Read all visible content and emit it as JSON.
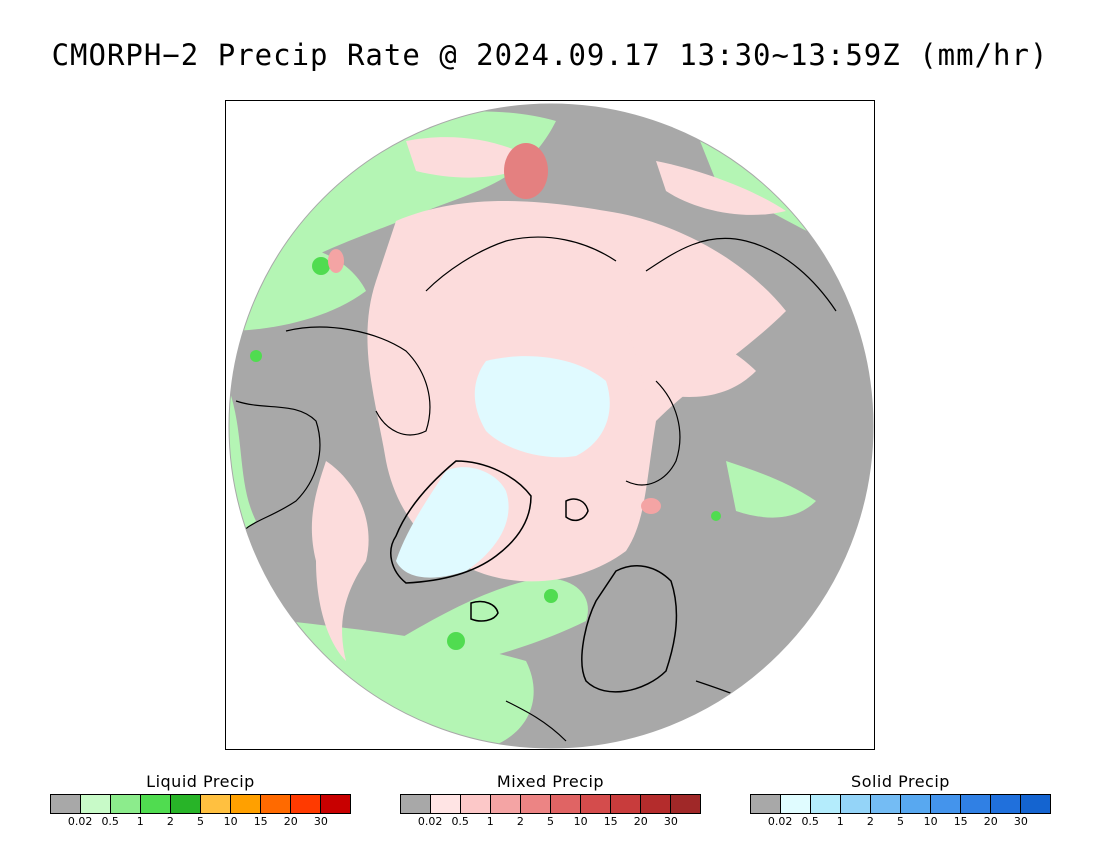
{
  "title": "CMORPH−2 Precip Rate @ 2024.09.17 13:30~13:59Z (mm/hr)",
  "map": {
    "projection": "north-polar-stereographic",
    "categories": {
      "none": "#a8a8a8",
      "liquid": "#b4f5b4",
      "liquid_mid": "#50dc50",
      "mixed": "#fcdcdc",
      "mixed_mid": "#e48080",
      "solid": "#e0faff",
      "coast": "#000000"
    }
  },
  "legends": [
    {
      "title": "Liquid Precip",
      "colors": [
        "#a8a8a8",
        "#c8fac8",
        "#8cec8c",
        "#50dc50",
        "#28b428",
        "#ffc040",
        "#ffa000",
        "#ff6a00",
        "#ff3a00",
        "#c80000"
      ],
      "labels": [
        "0.02",
        "0.5",
        "1",
        "2",
        "5",
        "10",
        "15",
        "20",
        "30"
      ]
    },
    {
      "title": "Mixed Precip",
      "colors": [
        "#a8a8a8",
        "#ffe4e4",
        "#fcc8c8",
        "#f4a4a4",
        "#ec8484",
        "#e06464",
        "#d44c4c",
        "#c83c3c",
        "#b42c2c",
        "#a02828"
      ],
      "labels": [
        "0.02",
        "0.5",
        "1",
        "2",
        "5",
        "10",
        "15",
        "20",
        "30"
      ]
    },
    {
      "title": "Solid Precip",
      "colors": [
        "#a8a8a8",
        "#e0fcff",
        "#b4ecfc",
        "#94d4f8",
        "#74bcf4",
        "#58a8f0",
        "#4494ec",
        "#3080e4",
        "#2070dc",
        "#1464d0"
      ],
      "labels": [
        "0.02",
        "0.5",
        "1",
        "2",
        "5",
        "10",
        "15",
        "20",
        "30"
      ]
    }
  ]
}
